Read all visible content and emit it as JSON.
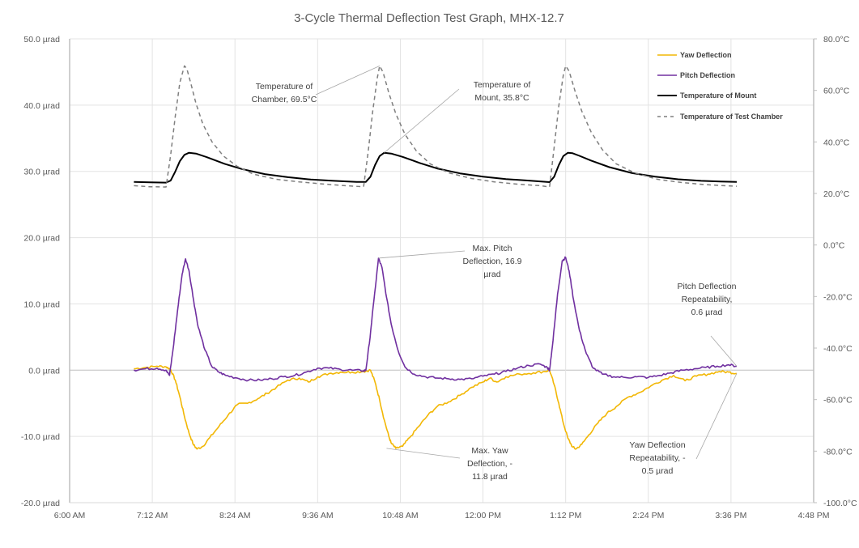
{
  "chart_data": {
    "type": "line",
    "title": "3-Cycle Thermal Deflection Test Graph, MHX-12.7",
    "xlabel": "",
    "ylabel_left": "",
    "ylabel_right": "",
    "x_unit": "minutes since 6:00 AM",
    "x_range": [
      0,
      648
    ],
    "x_ticks": [
      {
        "value": 0,
        "label": "6:00 AM"
      },
      {
        "value": 72,
        "label": "7:12 AM"
      },
      {
        "value": 144,
        "label": "8:24 AM"
      },
      {
        "value": 216,
        "label": "9:36 AM"
      },
      {
        "value": 288,
        "label": "10:48 AM"
      },
      {
        "value": 360,
        "label": "12:00 PM"
      },
      {
        "value": 432,
        "label": "1:12 PM"
      },
      {
        "value": 504,
        "label": "2:24 PM"
      },
      {
        "value": 576,
        "label": "3:36 PM"
      },
      {
        "value": 648,
        "label": "4:48 PM"
      }
    ],
    "y_left_range": [
      -20,
      50
    ],
    "y_left_ticks": [
      {
        "value": 50,
        "label": "50.0 µrad"
      },
      {
        "value": 40,
        "label": "40.0 µrad"
      },
      {
        "value": 30,
        "label": "30.0 µrad"
      },
      {
        "value": 20,
        "label": "20.0 µrad"
      },
      {
        "value": 10,
        "label": "10.0 µrad"
      },
      {
        "value": 0,
        "label": "0.0 µrad"
      },
      {
        "value": -10,
        "label": "-10.0 µrad"
      },
      {
        "value": -20,
        "label": "-20.0 µrad"
      }
    ],
    "y_right_range": [
      -100,
      80
    ],
    "y_right_ticks": [
      {
        "value": 80,
        "label": "80.0°C"
      },
      {
        "value": 60,
        "label": "60.0°C"
      },
      {
        "value": 40,
        "label": "40.0°C"
      },
      {
        "value": 20,
        "label": "20.0°C"
      },
      {
        "value": 0,
        "label": "0.0°C"
      },
      {
        "value": -20,
        "label": "-20.0°C"
      },
      {
        "value": -40,
        "label": "-40.0°C"
      },
      {
        "value": -60,
        "label": "-60.0°C"
      },
      {
        "value": -80,
        "label": "-80.0°C"
      },
      {
        "value": -100,
        "label": "-100.0°C"
      }
    ],
    "grid": true,
    "legend_position": "top-right",
    "series": [
      {
        "name": "Yaw Deflection",
        "axis": "left",
        "color": "#F2B705",
        "style": "solid",
        "x": [
          56,
          66,
          76,
          84,
          88,
          92,
          96,
          100,
          104,
          108,
          111,
          116,
          122,
          130,
          138,
          146,
          155,
          164,
          172,
          180,
          190,
          200,
          208,
          216,
          226,
          236,
          246,
          256,
          262,
          266,
          270,
          274,
          278,
          280,
          284,
          290,
          296,
          304,
          312,
          320,
          330,
          340,
          350,
          360,
          366,
          372,
          380,
          392,
          404,
          414,
          418,
          422,
          426,
          430,
          434,
          438,
          441,
          446,
          452,
          460,
          468,
          476,
          486,
          496,
          506,
          516,
          526,
          536,
          546,
          556,
          566,
          574,
          581
        ],
        "values": [
          0.2,
          0.4,
          0.6,
          0.5,
          0.1,
          -1.5,
          -4.0,
          -7.0,
          -9.5,
          -11.3,
          -11.9,
          -11.5,
          -10.2,
          -8.5,
          -6.8,
          -5.2,
          -5.0,
          -4.3,
          -3.5,
          -2.6,
          -1.5,
          -1.2,
          -1.8,
          -1.0,
          -0.5,
          -0.3,
          -0.3,
          -0.2,
          0.0,
          -1.8,
          -4.5,
          -7.5,
          -10.0,
          -11.0,
          -11.8,
          -11.5,
          -10.2,
          -8.5,
          -6.8,
          -5.5,
          -4.8,
          -3.8,
          -2.6,
          -1.8,
          -1.2,
          -1.8,
          -1.0,
          -0.6,
          -0.4,
          -0.2,
          0.0,
          -2.2,
          -5.0,
          -8.0,
          -10.3,
          -11.6,
          -11.9,
          -11.2,
          -9.8,
          -8.0,
          -6.5,
          -5.5,
          -4.1,
          -3.4,
          -2.4,
          -1.5,
          -0.8,
          -1.6,
          -0.9,
          -0.6,
          -0.2,
          -0.3,
          -0.5
        ]
      },
      {
        "name": "Pitch Deflection",
        "axis": "left",
        "color": "#7030A0",
        "style": "solid",
        "x": [
          56,
          66,
          76,
          84,
          87,
          90,
          94,
          98,
          101,
          104,
          108,
          112,
          118,
          124,
          130,
          136,
          146,
          156,
          166,
          176,
          186,
          196,
          206,
          216,
          226,
          236,
          246,
          256,
          258,
          261,
          265,
          269,
          272,
          276,
          280,
          286,
          292,
          300,
          310,
          320,
          330,
          340,
          350,
          360,
          370,
          380,
          390,
          400,
          410,
          416,
          418,
          421,
          425,
          429,
          432,
          435,
          439,
          444,
          450,
          456,
          464,
          474,
          484,
          494,
          504,
          514,
          524,
          534,
          544,
          554,
          564,
          574,
          581
        ],
        "values": [
          0.0,
          0.2,
          0.3,
          0.0,
          -0.8,
          3.0,
          9.0,
          14.5,
          16.8,
          15.0,
          10.5,
          6.5,
          3.0,
          0.5,
          -0.3,
          -0.8,
          -1.2,
          -1.5,
          -1.5,
          -1.3,
          -1.0,
          -0.8,
          -0.3,
          0.3,
          0.3,
          0.1,
          0.0,
          -0.1,
          0.0,
          4.0,
          10.5,
          16.9,
          15.5,
          11.0,
          7.0,
          3.0,
          0.5,
          -0.6,
          -1.0,
          -1.2,
          -1.3,
          -1.4,
          -1.3,
          -0.9,
          -0.6,
          -0.2,
          0.3,
          0.7,
          0.9,
          0.4,
          0.0,
          4.5,
          11.5,
          16.5,
          17.0,
          15.0,
          10.5,
          6.0,
          2.5,
          0.3,
          -0.6,
          -1.0,
          -1.1,
          -1.0,
          -1.1,
          -0.8,
          -0.4,
          0.0,
          0.2,
          0.4,
          0.6,
          0.8,
          0.6
        ]
      },
      {
        "name": "Temperature of Mount",
        "axis": "right",
        "color": "#000000",
        "style": "solid",
        "x": [
          56,
          70,
          84,
          88,
          92,
          96,
          100,
          104,
          110,
          120,
          135,
          150,
          170,
          190,
          210,
          230,
          250,
          258,
          262,
          266,
          270,
          274,
          280,
          290,
          305,
          320,
          340,
          360,
          380,
          400,
          418,
          422,
          426,
          430,
          434,
          438,
          444,
          454,
          470,
          490,
          510,
          530,
          550,
          570,
          581
        ],
        "values": [
          24.5,
          24.3,
          24.2,
          25.0,
          28.5,
          32.5,
          35.0,
          35.8,
          35.5,
          34.0,
          31.5,
          29.5,
          27.5,
          26.3,
          25.4,
          24.9,
          24.5,
          24.5,
          26.5,
          31.0,
          34.5,
          35.8,
          35.5,
          34.2,
          31.8,
          29.7,
          27.8,
          26.5,
          25.6,
          25.0,
          24.4,
          26.5,
          31.0,
          34.5,
          35.8,
          35.6,
          34.6,
          32.8,
          30.2,
          27.9,
          26.5,
          25.5,
          24.9,
          24.6,
          24.5
        ]
      },
      {
        "name": "Temperature of Test Chamber",
        "axis": "right",
        "color": "#7F7F7F",
        "style": "dashed",
        "x": [
          56,
          70,
          84,
          88,
          92,
          96,
          100,
          102,
          106,
          110,
          116,
          124,
          134,
          146,
          160,
          180,
          200,
          220,
          240,
          256,
          260,
          264,
          268,
          270,
          273,
          278,
          284,
          292,
          302,
          314,
          330,
          350,
          370,
          390,
          410,
          418,
          422,
          426,
          430,
          432,
          435,
          440,
          446,
          454,
          464,
          476,
          492,
          512,
          532,
          552,
          570,
          581
        ],
        "values": [
          23.0,
          22.6,
          22.5,
          35.0,
          50.0,
          63.0,
          69.5,
          68.5,
          62.0,
          55.0,
          47.0,
          40.0,
          34.5,
          30.5,
          27.5,
          25.5,
          24.5,
          23.7,
          23.0,
          22.6,
          36.0,
          52.0,
          65.0,
          69.5,
          67.0,
          59.0,
          51.0,
          43.0,
          36.5,
          31.5,
          28.0,
          25.8,
          24.5,
          23.6,
          23.0,
          22.5,
          38.0,
          54.0,
          66.0,
          69.5,
          67.5,
          60.0,
          52.0,
          44.0,
          37.0,
          31.5,
          28.0,
          25.5,
          24.3,
          23.5,
          23.0,
          22.8
        ]
      }
    ],
    "annotations": [
      {
        "id": "chamber-temp",
        "lines": [
          "Temperature of",
          "Chamber, 69.5°C"
        ],
        "target_series": "Temperature of Test Chamber",
        "target_x": 270,
        "target_y": 69.5
      },
      {
        "id": "mount-temp",
        "lines": [
          "Temperature of",
          "Mount, 35.8°C"
        ],
        "target_series": "Temperature of Mount",
        "target_x": 274,
        "target_y": 35.8
      },
      {
        "id": "max-pitch",
        "lines": [
          "Max. Pitch",
          "Deflection, 16.9",
          "µrad"
        ],
        "target_series": "Pitch Deflection",
        "target_x": 269,
        "target_y": 16.9
      },
      {
        "id": "max-yaw",
        "lines": [
          "Max. Yaw",
          "Deflection, -",
          "11.8 µrad"
        ],
        "target_series": "Yaw Deflection",
        "target_x": 276,
        "target_y": -11.8
      },
      {
        "id": "pitch-repeat",
        "lines": [
          "Pitch Deflection",
          "Repeatability,",
          "0.6 µrad"
        ],
        "target_series": "Pitch Deflection",
        "target_x": 581,
        "target_y": 0.6
      },
      {
        "id": "yaw-repeat",
        "lines": [
          "Yaw Deflection",
          "Repeatability, -",
          "0.5 µrad"
        ],
        "target_series": "Yaw Deflection",
        "target_x": 581,
        "target_y": -0.5
      }
    ]
  }
}
